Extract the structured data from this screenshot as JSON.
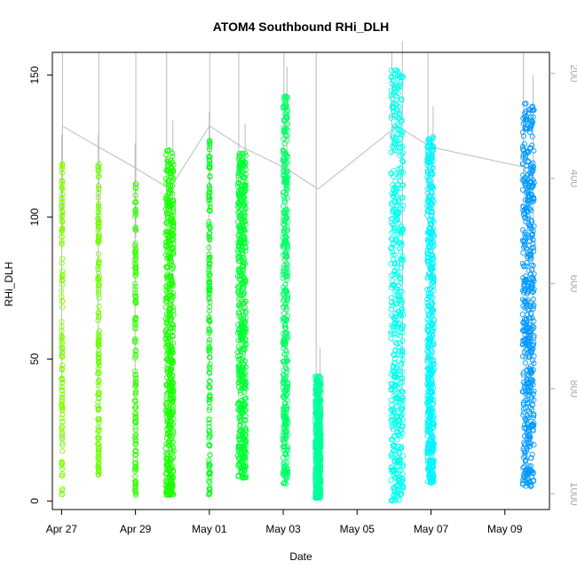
{
  "chart_data": {
    "type": "scatter",
    "title": "ATOM4 Southbound RHi_DLH",
    "xlabel": "Date",
    "ylabel": "RHi_DLH",
    "x_ticks": [
      "Apr 27",
      "Apr 29",
      "May 01",
      "May 03",
      "May 05",
      "May 07",
      "May 09"
    ],
    "x_tick_dates": [
      "2018-04-27",
      "2018-04-29",
      "2018-05-01",
      "2018-05-03",
      "2018-05-05",
      "2018-05-07",
      "2018-05-09"
    ],
    "xlim": [
      "2018-04-26T18:00",
      "2018-05-10T05:00"
    ],
    "ylim": [
      -3,
      158
    ],
    "y_ticks": [
      0,
      50,
      100,
      150
    ],
    "y2_ticks": [
      200,
      400,
      600,
      800,
      1000
    ],
    "y2lim": [
      1030,
      160
    ],
    "y2_reversed": true,
    "point_marker": "open-circle",
    "point_color_scale": [
      "#80ff00",
      "#00ff00",
      "#00ffcc",
      "#00ffff",
      "#0099ff"
    ],
    "pressure_line_color": "#bbbbbb",
    "flight_segments": [
      {
        "start": "2018-04-27T00:00",
        "end": "2018-04-27T00:35",
        "ymin": 2,
        "ymax": 119,
        "color": "#80ff00"
      },
      {
        "start": "2018-04-27T23:35",
        "end": "2018-04-28T00:25",
        "ymin": 9,
        "ymax": 119,
        "color": "#6cff00"
      },
      {
        "start": "2018-04-28T23:40",
        "end": "2018-04-29T00:20",
        "ymin": 2,
        "ymax": 116,
        "color": "#33ff00"
      },
      {
        "start": "2018-04-29T19:40",
        "end": "2018-04-30T00:50",
        "ymin": 2,
        "ymax": 124,
        "color": "#1aff00"
      },
      {
        "start": "2018-04-30T23:40",
        "end": "2018-05-01T00:30",
        "ymin": 2,
        "ymax": 127,
        "color": "#00ff1a"
      },
      {
        "start": "2018-05-01T18:30",
        "end": "2018-05-01T23:50",
        "ymin": 8,
        "ymax": 123,
        "color": "#00ff33"
      },
      {
        "start": "2018-05-02T23:50",
        "end": "2018-05-03T03:00",
        "ymin": 6,
        "ymax": 143,
        "color": "#00ff66"
      },
      {
        "start": "2018-05-03T20:50",
        "end": "2018-05-04T00:30",
        "ymin": 1,
        "ymax": 44,
        "color": "#00ff99"
      },
      {
        "start": "2018-05-05T22:00",
        "end": "2018-05-06T06:00",
        "ymin": 0,
        "ymax": 152,
        "color": "#00ffee"
      },
      {
        "start": "2018-05-06T21:30",
        "end": "2018-05-07T02:00",
        "ymin": 6,
        "ymax": 129,
        "color": "#00f5ff"
      },
      {
        "start": "2018-05-09T11:30",
        "end": "2018-05-09T19:00",
        "ymin": 5,
        "ymax": 140,
        "color": "#0099ff"
      }
    ]
  }
}
